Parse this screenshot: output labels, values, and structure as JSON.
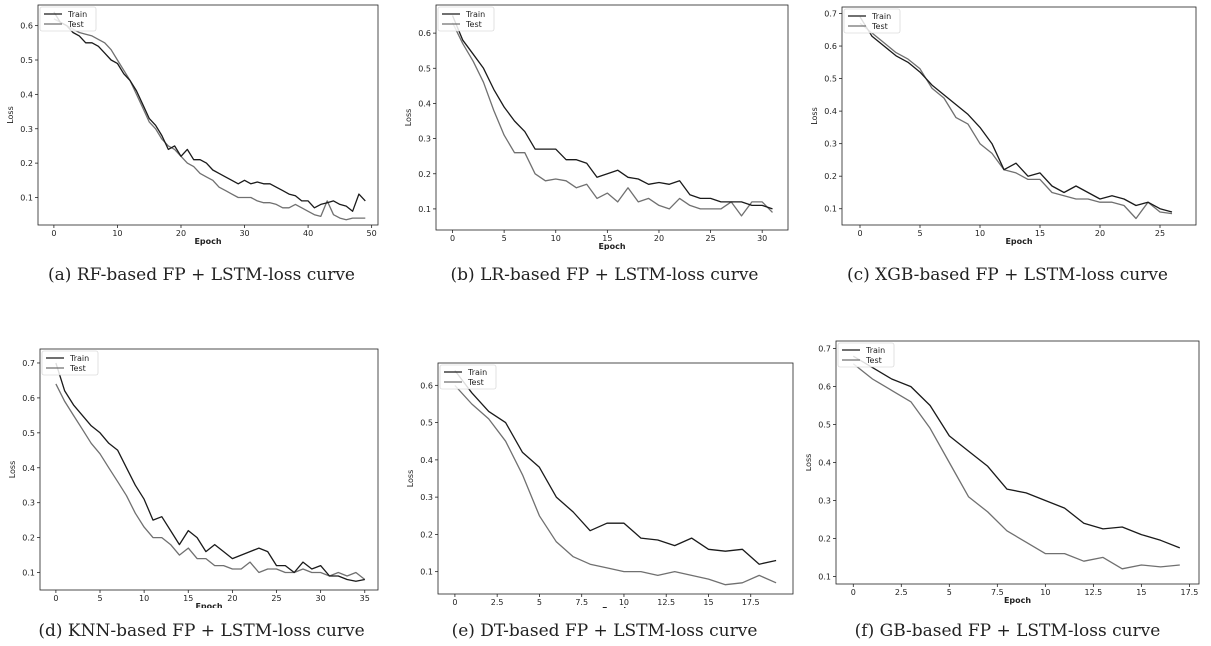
{
  "colors": {
    "train": "#1a1a1a",
    "test": "#707070",
    "axis": "#222222"
  },
  "legend_position": "top-left",
  "chart_data": [
    {
      "type": "line",
      "caption": "(a)  RF-based FP + LSTM-loss curve",
      "xlabel": "Epoch",
      "ylabel": "Loss",
      "xlim": [
        -2.5,
        51
      ],
      "ylim": [
        0.02,
        0.66
      ],
      "xticks": [
        0,
        10,
        20,
        30,
        40,
        50
      ],
      "yticks": [
        0.1,
        0.2,
        0.3,
        0.4,
        0.5,
        0.6
      ],
      "series": [
        {
          "name": "Train",
          "color": "#1a1a1a",
          "x": [
            0,
            1,
            2,
            3,
            4,
            5,
            6,
            7,
            8,
            9,
            10,
            11,
            12,
            13,
            14,
            15,
            16,
            17,
            18,
            19,
            20,
            21,
            22,
            23,
            24,
            25,
            26,
            27,
            28,
            29,
            30,
            31,
            32,
            33,
            34,
            35,
            36,
            37,
            38,
            39,
            40,
            41,
            42,
            43,
            44,
            45,
            46,
            47,
            48,
            49
          ],
          "y": [
            0.64,
            0.61,
            0.6,
            0.58,
            0.57,
            0.55,
            0.55,
            0.54,
            0.52,
            0.5,
            0.49,
            0.46,
            0.44,
            0.41,
            0.37,
            0.33,
            0.31,
            0.28,
            0.24,
            0.25,
            0.22,
            0.24,
            0.21,
            0.21,
            0.2,
            0.18,
            0.17,
            0.16,
            0.15,
            0.14,
            0.15,
            0.14,
            0.145,
            0.14,
            0.14,
            0.13,
            0.12,
            0.11,
            0.105,
            0.09,
            0.09,
            0.07,
            0.08,
            0.085,
            0.09,
            0.08,
            0.075,
            0.06,
            0.11,
            0.09
          ]
        },
        {
          "name": "Test",
          "color": "#707070",
          "x": [
            0,
            1,
            2,
            3,
            4,
            5,
            6,
            7,
            8,
            9,
            10,
            11,
            12,
            13,
            14,
            15,
            16,
            17,
            18,
            19,
            20,
            21,
            22,
            23,
            24,
            25,
            26,
            27,
            28,
            29,
            30,
            31,
            32,
            33,
            34,
            35,
            36,
            37,
            38,
            39,
            40,
            41,
            42,
            43,
            44,
            45,
            46,
            47,
            48,
            49
          ],
          "y": [
            0.62,
            0.61,
            0.6,
            0.59,
            0.58,
            0.575,
            0.57,
            0.56,
            0.55,
            0.53,
            0.5,
            0.47,
            0.44,
            0.4,
            0.36,
            0.32,
            0.3,
            0.27,
            0.25,
            0.24,
            0.22,
            0.2,
            0.19,
            0.17,
            0.16,
            0.15,
            0.13,
            0.12,
            0.11,
            0.1,
            0.1,
            0.1,
            0.09,
            0.085,
            0.085,
            0.08,
            0.07,
            0.07,
            0.08,
            0.07,
            0.06,
            0.05,
            0.045,
            0.09,
            0.05,
            0.04,
            0.035,
            0.04,
            0.04,
            0.04
          ]
        }
      ]
    },
    {
      "type": "line",
      "caption": "(b) LR-based FP + LSTM-loss curve",
      "xlabel": "Epoch",
      "ylabel": "Loss",
      "xlim": [
        -1.6,
        32.5
      ],
      "ylim": [
        0.04,
        0.68
      ],
      "xticks": [
        0,
        5,
        10,
        15,
        20,
        25,
        30
      ],
      "yticks": [
        0.1,
        0.2,
        0.3,
        0.4,
        0.5,
        0.6
      ],
      "series": [
        {
          "name": "Train",
          "color": "#1a1a1a",
          "x": [
            0,
            1,
            2,
            3,
            4,
            5,
            6,
            7,
            8,
            9,
            10,
            11,
            12,
            13,
            14,
            15,
            16,
            17,
            18,
            19,
            20,
            21,
            22,
            23,
            24,
            25,
            26,
            27,
            28,
            29,
            30,
            31
          ],
          "y": [
            0.65,
            0.58,
            0.54,
            0.5,
            0.44,
            0.39,
            0.35,
            0.32,
            0.27,
            0.27,
            0.27,
            0.24,
            0.24,
            0.23,
            0.19,
            0.2,
            0.21,
            0.19,
            0.185,
            0.17,
            0.175,
            0.17,
            0.18,
            0.14,
            0.13,
            0.13,
            0.12,
            0.12,
            0.12,
            0.11,
            0.11,
            0.1
          ]
        },
        {
          "name": "Test",
          "color": "#707070",
          "x": [
            0,
            1,
            2,
            3,
            4,
            5,
            6,
            7,
            8,
            9,
            10,
            11,
            12,
            13,
            14,
            15,
            16,
            17,
            18,
            19,
            20,
            21,
            22,
            23,
            24,
            25,
            26,
            27,
            28,
            29,
            30,
            31
          ],
          "y": [
            0.63,
            0.57,
            0.52,
            0.46,
            0.38,
            0.31,
            0.26,
            0.26,
            0.2,
            0.18,
            0.185,
            0.18,
            0.16,
            0.17,
            0.13,
            0.145,
            0.12,
            0.16,
            0.12,
            0.13,
            0.11,
            0.1,
            0.13,
            0.11,
            0.1,
            0.1,
            0.1,
            0.12,
            0.08,
            0.12,
            0.12,
            0.09
          ]
        }
      ]
    },
    {
      "type": "line",
      "caption": "(c) XGB-based FP + LSTM-loss curve",
      "xlabel": "Epoch",
      "ylabel": "Loss",
      "xlim": [
        -1.5,
        28
      ],
      "ylim": [
        0.05,
        0.72
      ],
      "xticks": [
        0,
        5,
        10,
        15,
        20,
        25
      ],
      "yticks": [
        0.1,
        0.2,
        0.3,
        0.4,
        0.5,
        0.6,
        0.7
      ],
      "series": [
        {
          "name": "Train",
          "color": "#1a1a1a",
          "x": [
            0,
            1,
            2,
            3,
            4,
            5,
            6,
            7,
            8,
            9,
            10,
            11,
            12,
            13,
            14,
            15,
            16,
            17,
            18,
            19,
            20,
            21,
            22,
            23,
            24,
            25,
            26
          ],
          "y": [
            0.69,
            0.63,
            0.6,
            0.57,
            0.55,
            0.52,
            0.48,
            0.45,
            0.42,
            0.39,
            0.35,
            0.3,
            0.22,
            0.24,
            0.2,
            0.21,
            0.17,
            0.15,
            0.17,
            0.15,
            0.13,
            0.14,
            0.13,
            0.11,
            0.12,
            0.1,
            0.09
          ]
        },
        {
          "name": "Test",
          "color": "#707070",
          "x": [
            0,
            1,
            2,
            3,
            4,
            5,
            6,
            7,
            8,
            9,
            10,
            11,
            12,
            13,
            14,
            15,
            16,
            17,
            18,
            19,
            20,
            21,
            22,
            23,
            24,
            25,
            26
          ],
          "y": [
            0.67,
            0.64,
            0.61,
            0.58,
            0.56,
            0.53,
            0.47,
            0.44,
            0.38,
            0.36,
            0.3,
            0.27,
            0.22,
            0.21,
            0.19,
            0.19,
            0.15,
            0.14,
            0.13,
            0.13,
            0.12,
            0.12,
            0.11,
            0.07,
            0.12,
            0.09,
            0.085
          ]
        }
      ]
    },
    {
      "type": "line",
      "caption": "(d) KNN-based FP + LSTM-loss curve",
      "xlabel": "Epoch",
      "ylabel": "Loss",
      "xlim": [
        -1.8,
        36.5
      ],
      "ylim": [
        0.05,
        0.74
      ],
      "xticks": [
        0,
        5,
        10,
        15,
        20,
        25,
        30,
        35
      ],
      "yticks": [
        0.1,
        0.2,
        0.3,
        0.4,
        0.5,
        0.6,
        0.7
      ],
      "series": [
        {
          "name": "Train",
          "color": "#1a1a1a",
          "x": [
            0,
            1,
            2,
            3,
            4,
            5,
            6,
            7,
            8,
            9,
            10,
            11,
            12,
            13,
            14,
            15,
            16,
            17,
            18,
            19,
            20,
            21,
            22,
            23,
            24,
            25,
            26,
            27,
            28,
            29,
            30,
            31,
            32,
            33,
            34,
            35
          ],
          "y": [
            0.7,
            0.62,
            0.58,
            0.55,
            0.52,
            0.5,
            0.47,
            0.45,
            0.4,
            0.35,
            0.31,
            0.25,
            0.26,
            0.22,
            0.18,
            0.22,
            0.2,
            0.16,
            0.18,
            0.16,
            0.14,
            0.15,
            0.16,
            0.17,
            0.16,
            0.12,
            0.12,
            0.1,
            0.13,
            0.11,
            0.12,
            0.09,
            0.09,
            0.08,
            0.075,
            0.08
          ]
        },
        {
          "name": "Test",
          "color": "#707070",
          "x": [
            0,
            1,
            2,
            3,
            4,
            5,
            6,
            7,
            8,
            9,
            10,
            11,
            12,
            13,
            14,
            15,
            16,
            17,
            18,
            19,
            20,
            21,
            22,
            23,
            24,
            25,
            26,
            27,
            28,
            29,
            30,
            31,
            32,
            33,
            34,
            35
          ],
          "y": [
            0.64,
            0.59,
            0.55,
            0.51,
            0.47,
            0.44,
            0.4,
            0.36,
            0.32,
            0.27,
            0.23,
            0.2,
            0.2,
            0.18,
            0.15,
            0.17,
            0.14,
            0.14,
            0.12,
            0.12,
            0.11,
            0.11,
            0.13,
            0.1,
            0.11,
            0.11,
            0.1,
            0.1,
            0.11,
            0.1,
            0.1,
            0.09,
            0.1,
            0.09,
            0.1,
            0.08
          ]
        }
      ]
    },
    {
      "type": "line",
      "caption": "(e) DT-based FP + LSTM-loss curve",
      "xlabel": "Epoch",
      "ylabel": "Loss",
      "xlim": [
        -1.0,
        20.0
      ],
      "ylim": [
        0.04,
        0.66
      ],
      "xticks": [
        0.0,
        2.5,
        5.0,
        7.5,
        10.0,
        12.5,
        15.0,
        17.5
      ],
      "yticks": [
        0.1,
        0.2,
        0.3,
        0.4,
        0.5,
        0.6
      ],
      "series": [
        {
          "name": "Train",
          "color": "#1a1a1a",
          "x": [
            0,
            1,
            2,
            3,
            4,
            5,
            6,
            7,
            8,
            9,
            10,
            11,
            12,
            13,
            14,
            15,
            16,
            17,
            18,
            19
          ],
          "y": [
            0.64,
            0.58,
            0.53,
            0.5,
            0.42,
            0.38,
            0.3,
            0.26,
            0.21,
            0.23,
            0.23,
            0.19,
            0.185,
            0.17,
            0.19,
            0.16,
            0.155,
            0.16,
            0.12,
            0.13
          ]
        },
        {
          "name": "Test",
          "color": "#707070",
          "x": [
            0,
            1,
            2,
            3,
            4,
            5,
            6,
            7,
            8,
            9,
            10,
            11,
            12,
            13,
            14,
            15,
            16,
            17,
            18,
            19
          ],
          "y": [
            0.6,
            0.55,
            0.51,
            0.45,
            0.36,
            0.25,
            0.18,
            0.14,
            0.12,
            0.11,
            0.1,
            0.1,
            0.09,
            0.1,
            0.09,
            0.08,
            0.065,
            0.07,
            0.09,
            0.07
          ]
        }
      ]
    },
    {
      "type": "line",
      "caption": "(f) GB-based FP + LSTM-loss curve",
      "xlabel": "Epoch",
      "ylabel": "Loss",
      "xlim": [
        -0.9,
        18.0
      ],
      "ylim": [
        0.08,
        0.72
      ],
      "xticks": [
        0.0,
        2.5,
        5.0,
        7.5,
        10.0,
        12.5,
        15.0,
        17.5
      ],
      "yticks": [
        0.1,
        0.2,
        0.3,
        0.4,
        0.5,
        0.6,
        0.7
      ],
      "series": [
        {
          "name": "Train",
          "color": "#1a1a1a",
          "x": [
            0,
            1,
            2,
            3,
            4,
            5,
            6,
            7,
            8,
            9,
            10,
            11,
            12,
            13,
            14,
            15,
            16,
            17
          ],
          "y": [
            0.68,
            0.65,
            0.62,
            0.6,
            0.55,
            0.47,
            0.43,
            0.39,
            0.33,
            0.32,
            0.3,
            0.28,
            0.24,
            0.225,
            0.23,
            0.21,
            0.195,
            0.175
          ]
        },
        {
          "name": "Test",
          "color": "#707070",
          "x": [
            0,
            1,
            2,
            3,
            4,
            5,
            6,
            7,
            8,
            9,
            10,
            11,
            12,
            13,
            14,
            15,
            16,
            17
          ],
          "y": [
            0.66,
            0.62,
            0.59,
            0.56,
            0.49,
            0.4,
            0.31,
            0.27,
            0.22,
            0.19,
            0.16,
            0.16,
            0.14,
            0.15,
            0.12,
            0.13,
            0.125,
            0.13
          ]
        }
      ]
    }
  ]
}
